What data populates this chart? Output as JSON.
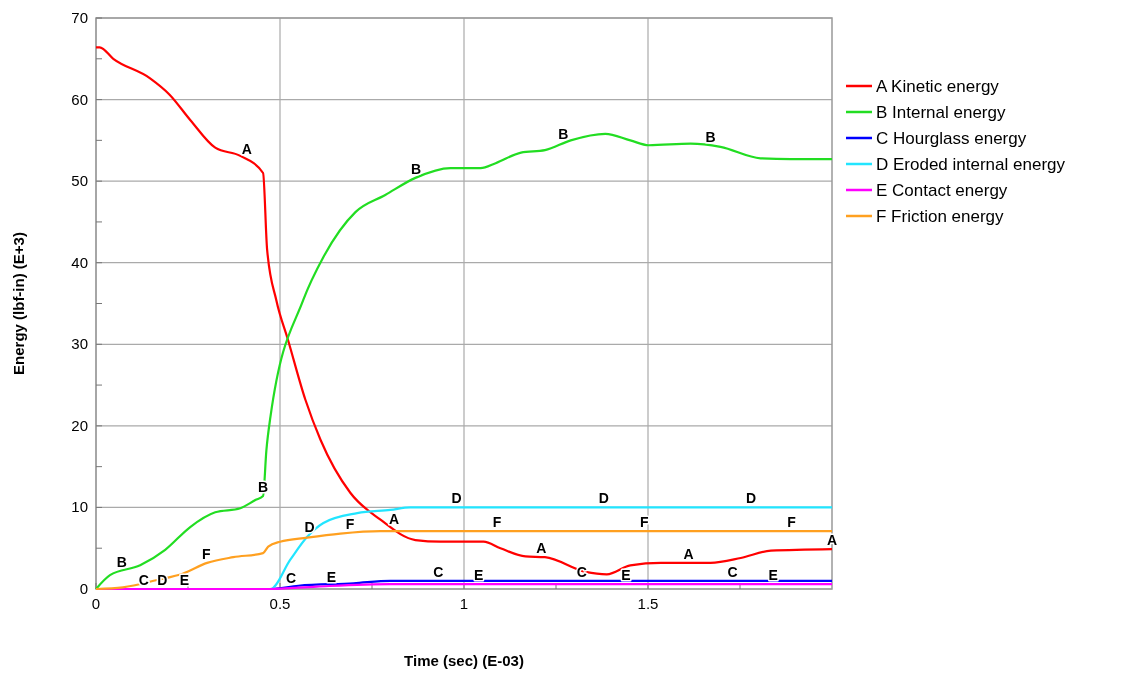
{
  "chart_data": {
    "type": "line",
    "xlabel": "Time (sec) (E-03)",
    "ylabel": "Energy (lbf-in) (E+3)",
    "xlim": [
      0,
      2.0
    ],
    "ylim": [
      0,
      70
    ],
    "xticks": [
      0,
      {
        "value": 0.25,
        "label": null
      },
      0.5,
      {
        "value": 0.75,
        "label": null
      },
      1,
      {
        "value": 1.25,
        "label": null
      },
      1.5,
      {
        "value": 1.75,
        "label": null
      }
    ],
    "yticks": [
      0,
      {
        "value": 5,
        "label": null
      },
      10,
      {
        "value": 15,
        "label": null
      },
      20,
      {
        "value": 25,
        "label": null
      },
      30,
      {
        "value": 35,
        "label": null
      },
      40,
      {
        "value": 45,
        "label": null
      },
      50,
      {
        "value": 55,
        "label": null
      },
      60,
      {
        "value": 65,
        "label": null
      },
      70
    ],
    "grid": true,
    "legend": "right",
    "marker": "none",
    "line_style": "solid",
    "series": [
      {
        "name": "A Kinetic energy",
        "color": "#ff0000",
        "x": [
          0,
          0.01,
          0.047,
          0.147,
          0.2,
          0.256,
          0.324,
          0.392,
          0.454,
          0.465,
          0.49,
          0.522,
          0.569,
          0.61,
          0.691,
          0.773,
          0.868,
          0.936,
          1.053,
          1.099,
          1.167,
          1.22,
          1.33,
          1.388,
          1.452,
          1.535,
          1.67,
          1.752,
          1.834,
          2.0
        ],
        "values": [
          66.4,
          66.4,
          65.0,
          62.6,
          60.6,
          57.5,
          54.1,
          53.1,
          51.0,
          41.6,
          35.4,
          30.5,
          23.2,
          18.3,
          11.8,
          8.5,
          6.0,
          5.8,
          5.8,
          5.0,
          4.0,
          3.9,
          2.1,
          1.8,
          2.9,
          3.2,
          3.2,
          3.8,
          4.7,
          4.9
        ]
      },
      {
        "name": "B Internal energy",
        "color": "#22dd22",
        "x": [
          0,
          0.038,
          0.12,
          0.188,
          0.256,
          0.324,
          0.392,
          0.433,
          0.454,
          0.463,
          0.474,
          0.563,
          0.618,
          0.705,
          0.786,
          0.868,
          0.963,
          1.045,
          1.086,
          1.155,
          1.22,
          1.29,
          1.384,
          1.452,
          1.502,
          1.616,
          1.697,
          1.806,
          1.888,
          2.0
        ],
        "values": [
          0,
          1.7,
          2.9,
          4.8,
          7.6,
          9.4,
          9.9,
          10.9,
          11.4,
          17.0,
          21.1,
          35.4,
          40.7,
          46.2,
          48.3,
          50.4,
          51.6,
          51.6,
          52.2,
          53.5,
          53.8,
          55.0,
          55.8,
          55.0,
          54.4,
          54.6,
          54.2,
          52.8,
          52.7,
          52.7
        ]
      },
      {
        "name": "C Hourglass energy",
        "color": "#0000ff",
        "x": [
          0,
          0.47,
          0.55,
          0.7,
          0.8,
          2.0
        ],
        "values": [
          0,
          0,
          0.4,
          0.7,
          1.0,
          1.0
        ]
      },
      {
        "name": "D Eroded internal energy",
        "color": "#22e5ff",
        "x": [
          0,
          0.474,
          0.528,
          0.574,
          0.618,
          0.71,
          0.8,
          0.854,
          2.0
        ],
        "values": [
          0,
          0,
          3.6,
          6.4,
          8.1,
          9.3,
          9.7,
          10.0,
          10.0
        ]
      },
      {
        "name": "E Contact energy",
        "color": "#ff00ff",
        "x": [
          0,
          0.47,
          0.6,
          0.8,
          2.0
        ],
        "values": [
          0,
          0,
          0.3,
          0.6,
          0.6
        ]
      },
      {
        "name": "F Friction energy",
        "color": "#ffa020",
        "x": [
          0,
          0.073,
          0.166,
          0.237,
          0.302,
          0.373,
          0.454,
          0.468,
          0.5,
          0.574,
          0.664,
          0.773,
          2.0
        ],
        "values": [
          0,
          0.2,
          1.1,
          1.9,
          3.2,
          3.9,
          4.4,
          5.2,
          5.8,
          6.3,
          6.8,
          7.1,
          7.1
        ]
      }
    ],
    "annotations": [
      {
        "text": "A",
        "x": 0.41,
        "y": 52.8
      },
      {
        "text": "A",
        "x": 0.81,
        "y": 7.5
      },
      {
        "text": "A",
        "x": 1.21,
        "y": 3.9
      },
      {
        "text": "A",
        "x": 1.61,
        "y": 3.2
      },
      {
        "text": "A",
        "x": 2.0,
        "y": 4.9
      },
      {
        "text": "B",
        "x": 0.07,
        "y": 2.2
      },
      {
        "text": "B",
        "x": 0.454,
        "y": 11.4
      },
      {
        "text": "B",
        "x": 0.87,
        "y": 50.4
      },
      {
        "text": "B",
        "x": 1.27,
        "y": 54.7
      },
      {
        "text": "B",
        "x": 1.67,
        "y": 54.3
      },
      {
        "text": "C",
        "x": 0.13,
        "y": 0
      },
      {
        "text": "C",
        "x": 0.53,
        "y": 0.3
      },
      {
        "text": "C",
        "x": 0.93,
        "y": 1.0
      },
      {
        "text": "C",
        "x": 1.32,
        "y": 1.0
      },
      {
        "text": "C",
        "x": 1.73,
        "y": 1.0
      },
      {
        "text": "D",
        "x": 0.18,
        "y": 0
      },
      {
        "text": "D",
        "x": 0.58,
        "y": 6.5
      },
      {
        "text": "D",
        "x": 0.98,
        "y": 10.0
      },
      {
        "text": "D",
        "x": 1.38,
        "y": 10.0
      },
      {
        "text": "D",
        "x": 1.78,
        "y": 10.0
      },
      {
        "text": "E",
        "x": 0.24,
        "y": 0
      },
      {
        "text": "E",
        "x": 0.64,
        "y": 0.4
      },
      {
        "text": "E",
        "x": 1.04,
        "y": 0.6
      },
      {
        "text": "E",
        "x": 1.44,
        "y": 0.6
      },
      {
        "text": "E",
        "x": 1.84,
        "y": 0.6
      },
      {
        "text": "F",
        "x": 0.3,
        "y": 3.2
      },
      {
        "text": "F",
        "x": 0.69,
        "y": 6.9
      },
      {
        "text": "F",
        "x": 1.09,
        "y": 7.1
      },
      {
        "text": "F",
        "x": 1.49,
        "y": 7.1
      },
      {
        "text": "F",
        "x": 1.89,
        "y": 7.1
      }
    ]
  }
}
